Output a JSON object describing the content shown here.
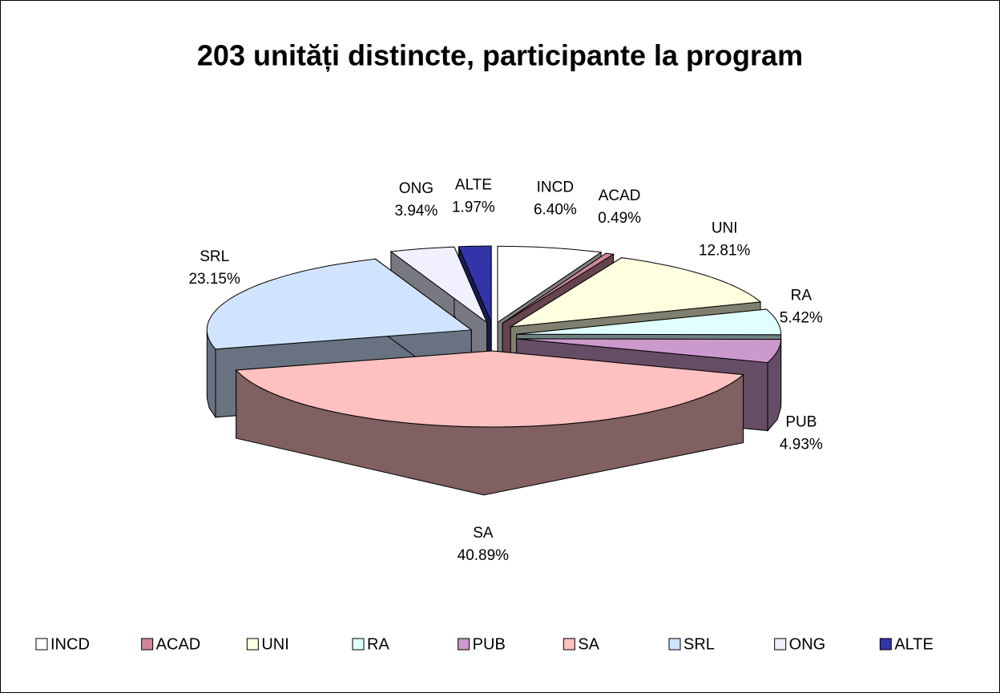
{
  "chart_data": {
    "type": "pie3d",
    "title": "203 unități distincte, participante la program",
    "categories": [
      "INCD",
      "ACAD",
      "UNI",
      "RA",
      "PUB",
      "SA",
      "SRL",
      "ONG",
      "ALTE"
    ],
    "values": [
      6.4,
      0.49,
      12.81,
      5.42,
      4.93,
      40.89,
      23.15,
      3.94,
      1.97
    ],
    "value_labels": [
      "6.40%",
      "0.49%",
      "12.81%",
      "5.42%",
      "4.93%",
      "40.89%",
      "23.15%",
      "3.94%",
      "1.97%"
    ],
    "colors": [
      "#ffffff",
      "#cc8899",
      "#ffffe0",
      "#e0ffff",
      "#cc99cc",
      "#ffc0c0",
      "#d0e4ff",
      "#f0f0ff",
      "#3333aa"
    ],
    "legend": "bottom"
  }
}
